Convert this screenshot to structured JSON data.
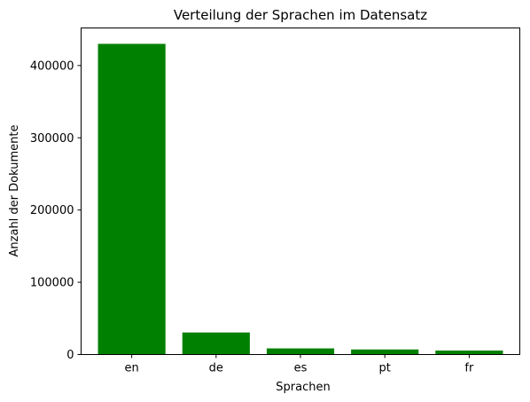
{
  "chart_data": {
    "type": "bar",
    "title": "Verteilung der Sprachen im Datensatz",
    "xlabel": "Sprachen",
    "ylabel": "Anzahl der Dokumente",
    "categories": [
      "en",
      "de",
      "es",
      "pt",
      "fr"
    ],
    "values": [
      430000,
      30500,
      8500,
      7000,
      5500
    ],
    "ylim": [
      0,
      452000
    ],
    "yticks": [
      0,
      100000,
      200000,
      300000,
      400000
    ],
    "bar_color": "#008000",
    "grid": false,
    "legend": "none"
  }
}
